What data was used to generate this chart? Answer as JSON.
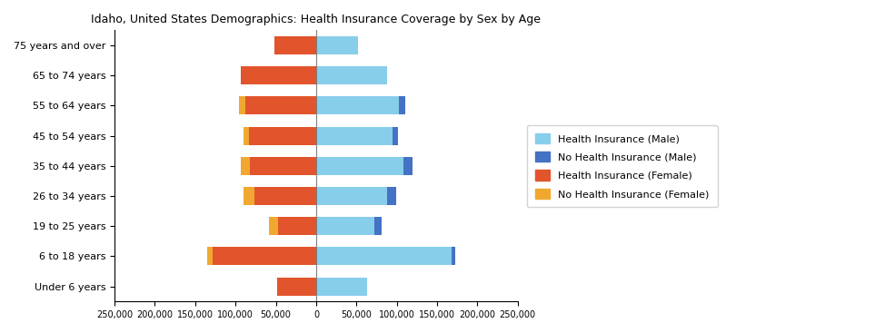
{
  "title": "Idaho, United States Demographics: Health Insurance Coverage by Sex by Age",
  "age_groups": [
    "75 years and over",
    "65 to 74 years",
    "55 to 64 years",
    "45 to 54 years",
    "35 to 44 years",
    "26 to 34 years",
    "19 to 25 years",
    "6 to 18 years",
    "Under 6 years"
  ],
  "health_ins_male": [
    52000,
    88000,
    103000,
    95000,
    108000,
    88000,
    72000,
    168000,
    63000
  ],
  "no_health_ins_male": [
    0,
    0,
    7000,
    7000,
    12000,
    11000,
    9000,
    4000,
    0
  ],
  "health_ins_female": [
    52000,
    93000,
    88000,
    83000,
    82000,
    77000,
    47000,
    128000,
    48000
  ],
  "no_health_ins_female": [
    0,
    0,
    8000,
    7000,
    11000,
    13000,
    11000,
    7000,
    0
  ],
  "colors": {
    "health_ins_male": "#87CEEB",
    "no_health_ins_male": "#4472C4",
    "health_ins_female": "#E2542B",
    "no_health_ins_female": "#F0A830"
  },
  "legend_labels": [
    "Health Insurance (Male)",
    "No Health Insurance (Male)",
    "Health Insurance (Female)",
    "No Health Insurance (Female)"
  ],
  "xlim": 250000,
  "background_color": "#ffffff"
}
